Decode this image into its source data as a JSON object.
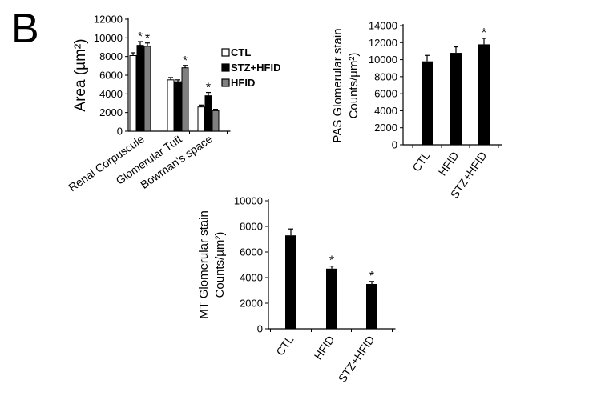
{
  "panel_label": "B",
  "chart_data": [
    {
      "id": "area",
      "type": "bar",
      "title": "",
      "ylabel": "Area (µm²)",
      "ylim": [
        0,
        12000
      ],
      "yticks": [
        0,
        2000,
        4000,
        6000,
        8000,
        10000,
        12000
      ],
      "categories": [
        "Renal Corpuscule",
        "Glomerular Tuft",
        "Bowman's space"
      ],
      "legend_position": "right",
      "series": [
        {
          "name": "CTL",
          "color": "#ffffff",
          "values": [
            8100,
            5500,
            2600
          ],
          "errors": [
            300,
            250,
            200
          ],
          "significant": [
            false,
            false,
            false
          ]
        },
        {
          "name": "STZ+HFID",
          "color": "#000000",
          "values": [
            9200,
            5300,
            3800
          ],
          "errors": [
            400,
            200,
            350
          ],
          "significant": [
            true,
            false,
            true
          ]
        },
        {
          "name": "HFID",
          "color": "#808080",
          "values": [
            9100,
            6800,
            2200
          ],
          "errors": [
            350,
            250,
            150
          ],
          "significant": [
            true,
            true,
            false
          ]
        }
      ],
      "annotation": "*",
      "grid": false
    },
    {
      "id": "pas",
      "type": "bar",
      "title": "",
      "ylabel_lines": [
        "PAS Glomerular stain",
        "Counts/µm²)"
      ],
      "ylim": [
        0,
        14000
      ],
      "yticks": [
        0,
        2000,
        4000,
        6000,
        8000,
        10000,
        12000,
        14000
      ],
      "categories": [
        "CTL",
        "HFID",
        "STZ+HFID"
      ],
      "values": [
        9800,
        10800,
        11800
      ],
      "errors": [
        700,
        700,
        700
      ],
      "significant": [
        false,
        false,
        true
      ],
      "color": "#000000",
      "annotation": "*",
      "grid": false
    },
    {
      "id": "mt",
      "type": "bar",
      "title": "",
      "ylabel_lines": [
        "MT Glomerular stain",
        "Counts/µm²)"
      ],
      "ylim": [
        0,
        10000
      ],
      "yticks": [
        0,
        2000,
        4000,
        6000,
        8000,
        10000
      ],
      "categories": [
        "CTL",
        "HFID",
        "STZ+HFID"
      ],
      "values": [
        7300,
        4700,
        3500
      ],
      "errors": [
        500,
        200,
        200
      ],
      "significant": [
        false,
        true,
        true
      ],
      "color": "#000000",
      "annotation": "*",
      "grid": false
    }
  ]
}
